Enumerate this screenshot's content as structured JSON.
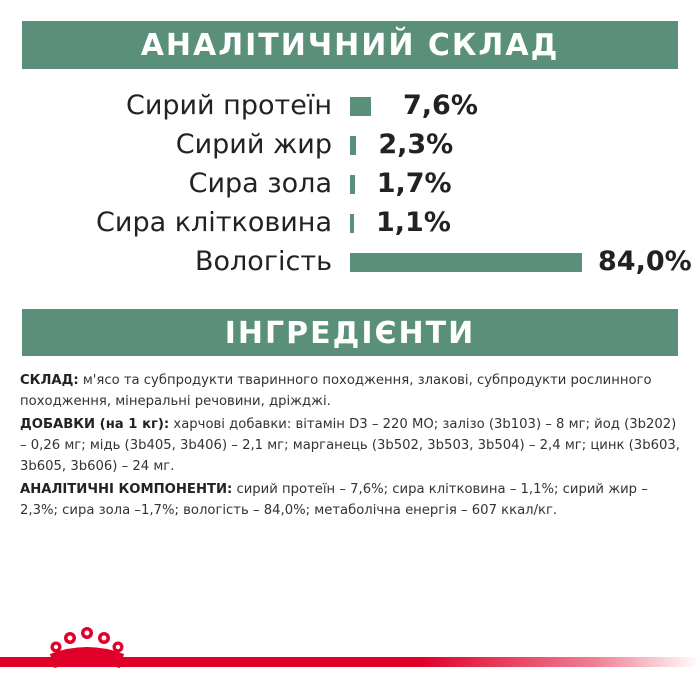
{
  "analysis": {
    "title": "АНАЛІТИЧНИЙ СКЛАД",
    "rows": [
      {
        "label": "Сирий протеїн",
        "value": "7,6%",
        "percent": 7.6
      },
      {
        "label": "Сирий жир",
        "value": "2,3%",
        "percent": 2.3
      },
      {
        "label": "Сира зола",
        "value": "1,7%",
        "percent": 1.7
      },
      {
        "label": "Сира клітковина",
        "value": "1,1%",
        "percent": 1.1
      },
      {
        "label": "Вологість",
        "value": "84,0%",
        "percent": 84.0
      }
    ]
  },
  "ingredients": {
    "title": "ІНГРЕДІЄНТИ",
    "composition_label": "СКЛАД:",
    "composition_text": " м'ясо та субпродукти тваринного походження, злакові, субпродукти рослинного походження, мінеральні речовини, дріжджі.",
    "additives_label": "ДОБАВКИ (на 1 кг):",
    "additives_text": " харчові добавки: вітамін D3 – 220 МО; залізо (3b103) – 8 мг; йод (3b202) – 0,26 мг; мідь (3b405, 3b406) – 2,1 мг; марганець (3b502, 3b503, 3b504) – 2,4 мг; цинк (3b603, 3b605, 3b606) – 24 мг.",
    "analytical_label": "АНАЛІТИЧНІ КОМПОНЕНТИ:",
    "analytical_text": " сирий протеїн – 7,6%; сира клітковина – 1,1%; сирий жир – 2,3%; сира зола –1,7%; вологість – 84,0%; метаболічна енергія – 607 ккал/кг."
  },
  "colors": {
    "accent_green": "#5a8f7a",
    "brand_red": "#e0002a"
  },
  "icons": {
    "brand_logo": "crown-logo-icon"
  }
}
